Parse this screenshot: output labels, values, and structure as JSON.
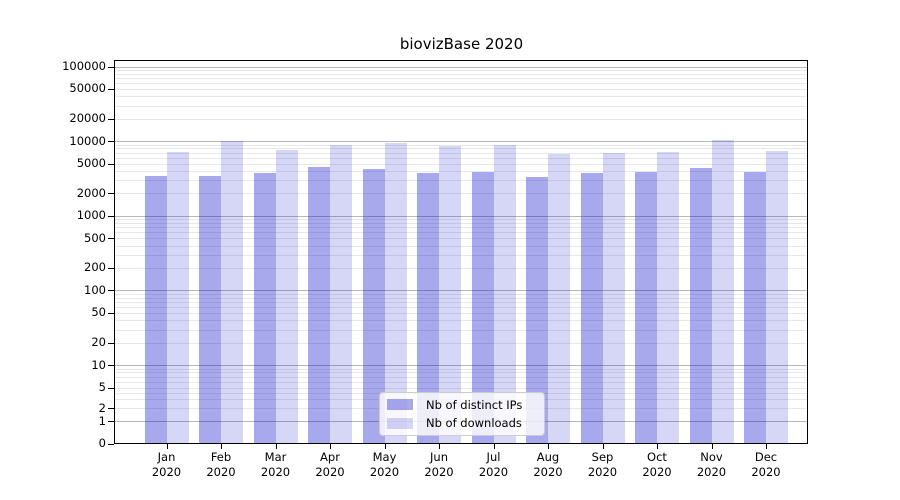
{
  "chart_data": {
    "type": "bar",
    "title": "biovizBase 2020",
    "categories": [
      "Jan",
      "Feb",
      "Mar",
      "Apr",
      "May",
      "Jun",
      "Jul",
      "Aug",
      "Sep",
      "Oct",
      "Nov",
      "Dec"
    ],
    "category_year": "2020",
    "series": [
      {
        "name": "Nb of distinct IPs",
        "color": "rgba(0,0,200,0.34)",
        "values": [
          3400,
          3400,
          3750,
          4550,
          4250,
          3800,
          3900,
          3300,
          3750,
          3900,
          4400,
          3900
        ]
      },
      {
        "name": "Nb of downloads",
        "color": "rgba(0,0,200,0.16)",
        "values": [
          7200,
          10150,
          7600,
          8900,
          9500,
          8500,
          9000,
          6700,
          6900,
          7050,
          10300,
          7400
        ]
      }
    ],
    "xlabel": "",
    "ylabel": "",
    "yscale": "symlog",
    "yticks": [
      0,
      1,
      2,
      5,
      10,
      20,
      50,
      100,
      200,
      500,
      1000,
      2000,
      5000,
      10000,
      20000,
      50000,
      100000
    ],
    "ylim": [
      0,
      120000
    ],
    "grid": "on",
    "legend_position": "lower center",
    "colors": {
      "major_grid": "#b8b8b8",
      "minor_grid": "#e8e8e8",
      "axis": "#000000",
      "background": "#ffffff"
    }
  }
}
